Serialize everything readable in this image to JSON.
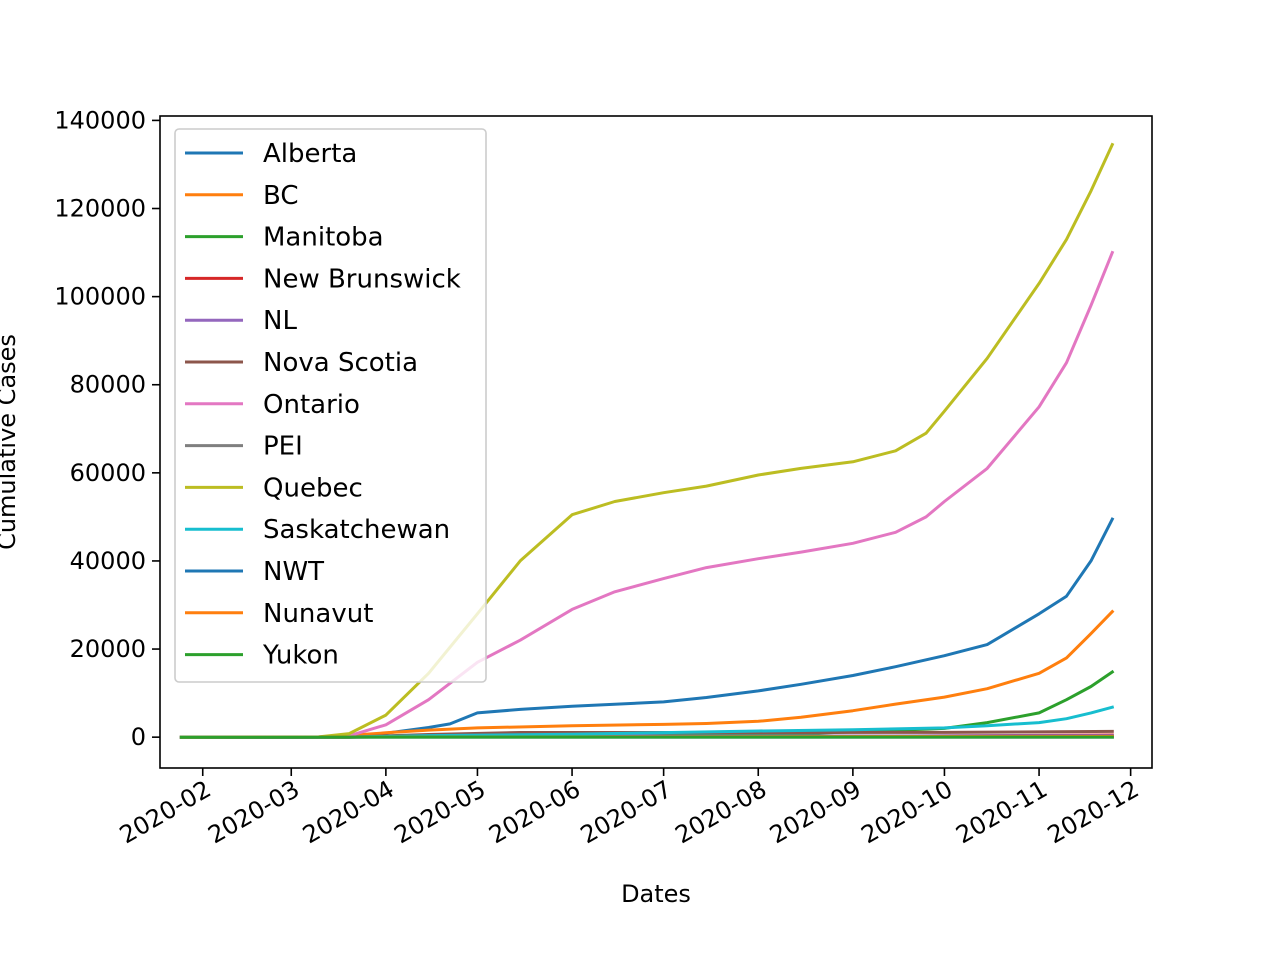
{
  "chart_data": {
    "type": "line",
    "xlabel": "Dates",
    "ylabel": "Cumulative Cases",
    "xlim": [
      "2020-01-18",
      "2020-12-08"
    ],
    "ylim": [
      -7000,
      141000
    ],
    "xticks": [
      "2020-02",
      "2020-03",
      "2020-04",
      "2020-05",
      "2020-06",
      "2020-07",
      "2020-08",
      "2020-09",
      "2020-10",
      "2020-11",
      "2020-12"
    ],
    "yticks": [
      0,
      20000,
      40000,
      60000,
      80000,
      100000,
      120000,
      140000
    ],
    "legend": "upper-left",
    "grid": false,
    "series": [
      {
        "name": "Alberta",
        "color": "#1f77b4",
        "points": [
          [
            "2020-01-25",
            0
          ],
          [
            "2020-03-01",
            0
          ],
          [
            "2020-03-15",
            60
          ],
          [
            "2020-04-01",
            900
          ],
          [
            "2020-04-15",
            2200
          ],
          [
            "2020-04-22",
            3000
          ],
          [
            "2020-05-01",
            5500
          ],
          [
            "2020-05-15",
            6300
          ],
          [
            "2020-06-01",
            7000
          ],
          [
            "2020-07-01",
            8000
          ],
          [
            "2020-07-15",
            9000
          ],
          [
            "2020-08-01",
            10500
          ],
          [
            "2020-08-15",
            12000
          ],
          [
            "2020-09-01",
            14000
          ],
          [
            "2020-09-15",
            16000
          ],
          [
            "2020-10-01",
            18500
          ],
          [
            "2020-10-15",
            21000
          ],
          [
            "2020-11-01",
            28000
          ],
          [
            "2020-11-10",
            32000
          ],
          [
            "2020-11-18",
            40000
          ],
          [
            "2020-11-25",
            49500
          ]
        ]
      },
      {
        "name": "BC",
        "color": "#ff7f0e",
        "points": [
          [
            "2020-01-25",
            0
          ],
          [
            "2020-03-10",
            30
          ],
          [
            "2020-03-20",
            400
          ],
          [
            "2020-04-01",
            1000
          ],
          [
            "2020-04-15",
            1600
          ],
          [
            "2020-05-01",
            2100
          ],
          [
            "2020-06-01",
            2600
          ],
          [
            "2020-07-01",
            2900
          ],
          [
            "2020-07-15",
            3100
          ],
          [
            "2020-08-01",
            3600
          ],
          [
            "2020-08-15",
            4500
          ],
          [
            "2020-09-01",
            6000
          ],
          [
            "2020-09-15",
            7500
          ],
          [
            "2020-10-01",
            9100
          ],
          [
            "2020-10-15",
            11000
          ],
          [
            "2020-11-01",
            14500
          ],
          [
            "2020-11-10",
            18000
          ],
          [
            "2020-11-18",
            23500
          ],
          [
            "2020-11-25",
            28500
          ]
        ]
      },
      {
        "name": "Manitoba",
        "color": "#2ca02c",
        "points": [
          [
            "2020-01-25",
            0
          ],
          [
            "2020-03-20",
            20
          ],
          [
            "2020-04-15",
            250
          ],
          [
            "2020-06-01",
            300
          ],
          [
            "2020-08-01",
            500
          ],
          [
            "2020-09-01",
            1200
          ],
          [
            "2020-10-01",
            2000
          ],
          [
            "2020-10-15",
            3300
          ],
          [
            "2020-11-01",
            5500
          ],
          [
            "2020-11-10",
            8500
          ],
          [
            "2020-11-18",
            11500
          ],
          [
            "2020-11-25",
            14800
          ]
        ]
      },
      {
        "name": "New Brunswick",
        "color": "#d62728",
        "points": [
          [
            "2020-01-25",
            0
          ],
          [
            "2020-03-20",
            20
          ],
          [
            "2020-04-15",
            120
          ],
          [
            "2020-06-01",
            130
          ],
          [
            "2020-09-01",
            200
          ],
          [
            "2020-11-25",
            500
          ]
        ]
      },
      {
        "name": "NL",
        "color": "#9467bd",
        "points": [
          [
            "2020-01-25",
            0
          ],
          [
            "2020-03-20",
            20
          ],
          [
            "2020-04-15",
            250
          ],
          [
            "2020-09-01",
            270
          ],
          [
            "2020-11-25",
            330
          ]
        ]
      },
      {
        "name": "Nova Scotia",
        "color": "#8c564b",
        "points": [
          [
            "2020-01-25",
            0
          ],
          [
            "2020-03-20",
            20
          ],
          [
            "2020-04-15",
            600
          ],
          [
            "2020-05-15",
            1050
          ],
          [
            "2020-10-01",
            1090
          ],
          [
            "2020-11-25",
            1300
          ]
        ]
      },
      {
        "name": "Ontario",
        "color": "#e377c2",
        "points": [
          [
            "2020-01-25",
            0
          ],
          [
            "2020-03-10",
            30
          ],
          [
            "2020-03-20",
            300
          ],
          [
            "2020-04-01",
            2800
          ],
          [
            "2020-04-15",
            8500
          ],
          [
            "2020-05-01",
            17000
          ],
          [
            "2020-05-15",
            22000
          ],
          [
            "2020-06-01",
            29000
          ],
          [
            "2020-06-15",
            33000
          ],
          [
            "2020-07-01",
            36000
          ],
          [
            "2020-07-15",
            38500
          ],
          [
            "2020-08-01",
            40500
          ],
          [
            "2020-08-15",
            42000
          ],
          [
            "2020-09-01",
            44000
          ],
          [
            "2020-09-15",
            46500
          ],
          [
            "2020-09-25",
            50000
          ],
          [
            "2020-10-01",
            53500
          ],
          [
            "2020-10-15",
            61000
          ],
          [
            "2020-11-01",
            75000
          ],
          [
            "2020-11-10",
            85000
          ],
          [
            "2020-11-18",
            98000
          ],
          [
            "2020-11-25",
            110000
          ]
        ]
      },
      {
        "name": "PEI",
        "color": "#7f7f7f",
        "points": [
          [
            "2020-01-25",
            0
          ],
          [
            "2020-04-15",
            30
          ],
          [
            "2020-11-25",
            70
          ]
        ]
      },
      {
        "name": "Quebec",
        "color": "#bcbd22",
        "points": [
          [
            "2020-01-25",
            0
          ],
          [
            "2020-03-10",
            50
          ],
          [
            "2020-03-20",
            800
          ],
          [
            "2020-04-01",
            5000
          ],
          [
            "2020-04-15",
            14500
          ],
          [
            "2020-05-01",
            28000
          ],
          [
            "2020-05-15",
            40000
          ],
          [
            "2020-06-01",
            50500
          ],
          [
            "2020-06-15",
            53500
          ],
          [
            "2020-07-01",
            55500
          ],
          [
            "2020-07-15",
            57000
          ],
          [
            "2020-08-01",
            59500
          ],
          [
            "2020-08-15",
            61000
          ],
          [
            "2020-09-01",
            62500
          ],
          [
            "2020-09-15",
            65000
          ],
          [
            "2020-09-25",
            69000
          ],
          [
            "2020-10-01",
            74000
          ],
          [
            "2020-10-15",
            86000
          ],
          [
            "2020-11-01",
            103000
          ],
          [
            "2020-11-10",
            113000
          ],
          [
            "2020-11-18",
            124000
          ],
          [
            "2020-11-25",
            134500
          ]
        ]
      },
      {
        "name": "Saskatchewan",
        "color": "#17becf",
        "points": [
          [
            "2020-01-25",
            0
          ],
          [
            "2020-03-20",
            40
          ],
          [
            "2020-04-15",
            350
          ],
          [
            "2020-06-01",
            650
          ],
          [
            "2020-08-01",
            1400
          ],
          [
            "2020-09-01",
            1700
          ],
          [
            "2020-10-01",
            2100
          ],
          [
            "2020-10-15",
            2600
          ],
          [
            "2020-11-01",
            3300
          ],
          [
            "2020-11-10",
            4200
          ],
          [
            "2020-11-18",
            5500
          ],
          [
            "2020-11-25",
            6800
          ]
        ]
      },
      {
        "name": "NWT",
        "color": "#1f77b4",
        "points": [
          [
            "2020-01-25",
            0
          ],
          [
            "2020-11-25",
            15
          ]
        ]
      },
      {
        "name": "Nunavut",
        "color": "#ff7f0e",
        "points": [
          [
            "2020-01-25",
            0
          ],
          [
            "2020-11-25",
            150
          ]
        ]
      },
      {
        "name": "Yukon",
        "color": "#2ca02c",
        "points": [
          [
            "2020-01-25",
            0
          ],
          [
            "2020-11-25",
            25
          ]
        ]
      }
    ]
  }
}
